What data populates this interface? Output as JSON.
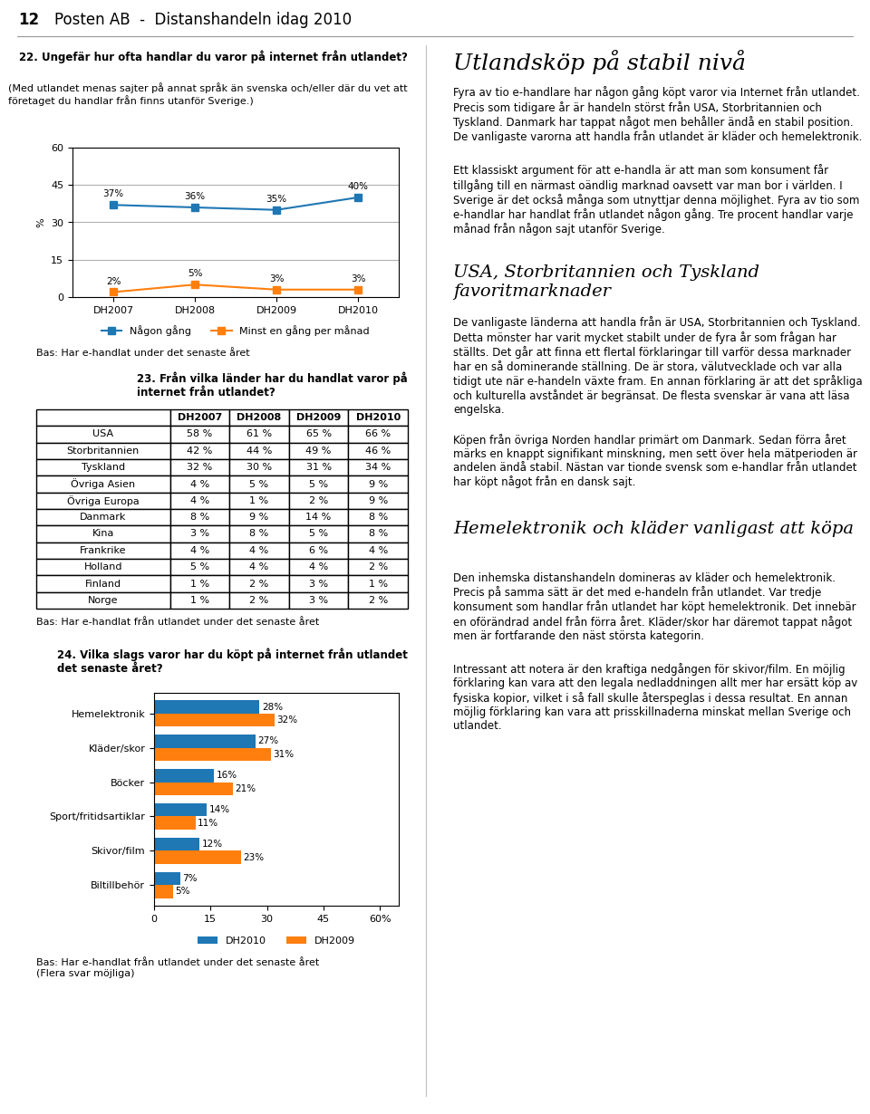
{
  "title": "Posten AB  -  Distanshandeln idag 2010",
  "annotations": [
    "12",
    "Utlandsköp på stabil nivå",
    "Fyra av tio e-handlare har någon gång köpt varor via Internet från utlandet. Precis som tidigare år är handeln störst från USA, Storbritannien och Tyskland. Danmark har tappat något men behåller ändå en stabil position. De vanligaste varorna att handla från utlandet är kläder och hemelektronik.",
    "Ett klassiskt argument för att e-handla är att man som konsument får tillgång till en närmast oändlig marknad oavsett var man bor i världen. I Sverige är det också många som utnyttjar denna möjlighet. Fyra av tio som e-handlar har handlat från utlandet någon gång. Tre procent handlar varje månad från någon sajt utanför Sverige.",
    "USA, Storbritannien och Tyskland favoritmarknader",
    "De vanligaste länderna att handla från är USA, Storbritannien och Tyskland. Detta mönster har varit mycket stabilt under de fyra år som frågan har ställts. Det går att finna ett flertal förklaringar till varför dessa marknader har en så dominerande ställning. De är stora, välutvecklade och var alla tidigt ute när e-handeln växte fram. En annan förklaring är att det språkliga och kulturella avståndet är begränsat. De flesta svenskar är vana att läsa engelska.",
    "Köpen från övriga Norden handlar primärt om Danmark. Sedan förra året märks en knappt signifikant minskning, men sett över hela mätperioden är andelen ändå stabil. Nästan var tionde svensk som e-handlar från utlandet har köpt något från en dansk sajt.",
    "Hemelektronik och kläder vanligast att köpa",
    "Den inhemska distanshandeln domineras av kläder och hemelektronik. Precis på samma sätt är det med e-handeln från utlandet. Var tredje konsument som handlar från utlandet har köpt hemelektronik. Det innebär en oförändrad andel från förra året. Kläder/skor har däremot tappat något men är fortfarande den näst största kategorin.",
    "Intressant att notera är den kraftiga nedgången för skivor/film. En möjlig förklaring kan vara att den legala nedladdningen allt mer har ersätt köp av fysiska kopior, vilket i så fall skulle återspeglas i dessa resultat. En annan möjlig förklaring kan vara att prisskillnaderna minskat mellan Sverige och utlandet."
  ],
  "chart_data": [
    {
      "type": "line",
      "title": "22. Ungefär hur ofta handlar du varor på internet från utlandet?",
      "subtitle": "(Med utlandet menas sajter på annat språk än svenska och/eller där du vet att företaget du handlar från finns utanför Sverige.)",
      "categories": [
        "DH2007",
        "DH2008",
        "DH2009",
        "DH2010"
      ],
      "ylabel": "%",
      "ylim": [
        0,
        60
      ],
      "yticks": [
        0,
        15,
        30,
        45,
        60
      ],
      "grid": true,
      "legend": "upper center",
      "data_labels": true,
      "marker": "square",
      "series": [
        {
          "name": "Någon gång",
          "values": [
            37,
            36,
            35,
            40
          ],
          "value_labels": [
            "37%",
            "36%",
            "35%",
            "40%"
          ]
        },
        {
          "name": "Minst en gång per månad",
          "values": [
            2,
            5,
            3,
            3
          ],
          "value_labels": [
            "2%",
            "5%",
            "3%",
            "3%"
          ]
        }
      ],
      "annotations": [
        "Bas: Har e-handlat under det senaste året"
      ]
    },
    {
      "type": "table",
      "title": "23. Från vilka länder har du handlat varor på\ninternet från utlandet?",
      "categories": [
        "USA",
        "Storbritannien",
        "Tyskland",
        "Övriga Asien",
        "Övriga Europa",
        "Danmark",
        "Kina",
        "Frankrike",
        "Holland",
        "Finland",
        "Norge"
      ],
      "series": [
        {
          "name": "DH2007",
          "values": [
            58,
            42,
            32,
            4,
            4,
            8,
            3,
            4,
            5,
            1,
            1
          ],
          "value_labels": [
            "58 %",
            "42 %",
            "32 %",
            "4 %",
            "4 %",
            "8 %",
            "3 %",
            "4 %",
            "5 %",
            "1 %",
            "1 %"
          ]
        },
        {
          "name": "DH2008",
          "values": [
            61,
            44,
            30,
            5,
            1,
            9,
            8,
            4,
            4,
            2,
            2
          ],
          "value_labels": [
            "61 %",
            "44 %",
            "30 %",
            "5 %",
            "1 %",
            "9 %",
            "8 %",
            "4 %",
            "4 %",
            "2 %",
            "2 %"
          ]
        },
        {
          "name": "DH2009",
          "values": [
            65,
            49,
            31,
            5,
            2,
            14,
            5,
            6,
            4,
            3,
            3
          ],
          "value_labels": [
            "65 %",
            "49 %",
            "31 %",
            "5 %",
            "2 %",
            "14 %",
            "5 %",
            "6 %",
            "4 %",
            "3 %",
            "3 %"
          ]
        },
        {
          "name": "DH2010",
          "values": [
            66,
            46,
            34,
            9,
            9,
            8,
            8,
            4,
            2,
            1,
            2
          ],
          "value_labels": [
            "66 %",
            "46 %",
            "34 %",
            "9 %",
            "9 %",
            "8 %",
            "8 %",
            "4 %",
            "2 %",
            "1 %",
            "2 %"
          ]
        }
      ],
      "annotations": [
        "Bas: Har e-handlat från utlandet under det senaste året"
      ]
    },
    {
      "type": "bar",
      "orientation": "horizontal",
      "title": "24. Vilka slags varor har du köpt på internet från utlandet\ndet senaste året?",
      "categories": [
        "Hemelektronik",
        "Kläder/skor",
        "Böcker",
        "Sport/fritidsartiklar",
        "Skivor/film",
        "Biltillbehör"
      ],
      "xlim": [
        0,
        65
      ],
      "xticks": [
        0,
        15,
        30,
        45,
        {
          "value": 60,
          "label": "60%"
        }
      ],
      "legend": "upper center",
      "data_labels": true,
      "series": [
        {
          "name": "DH2010",
          "values": [
            28,
            27,
            16,
            14,
            12,
            7
          ],
          "value_labels": [
            "28%",
            "27%",
            "16%",
            "14%",
            "12%",
            "7%"
          ]
        },
        {
          "name": "DH2009",
          "values": [
            32,
            31,
            21,
            11,
            23,
            5
          ],
          "value_labels": [
            "32%",
            "31%",
            "21%",
            "11%",
            "23%",
            "5%"
          ]
        }
      ],
      "annotations": [
        "Bas: Har e-handlat från utlandet under det senaste året\n(Flera svar möjliga)"
      ]
    }
  ]
}
